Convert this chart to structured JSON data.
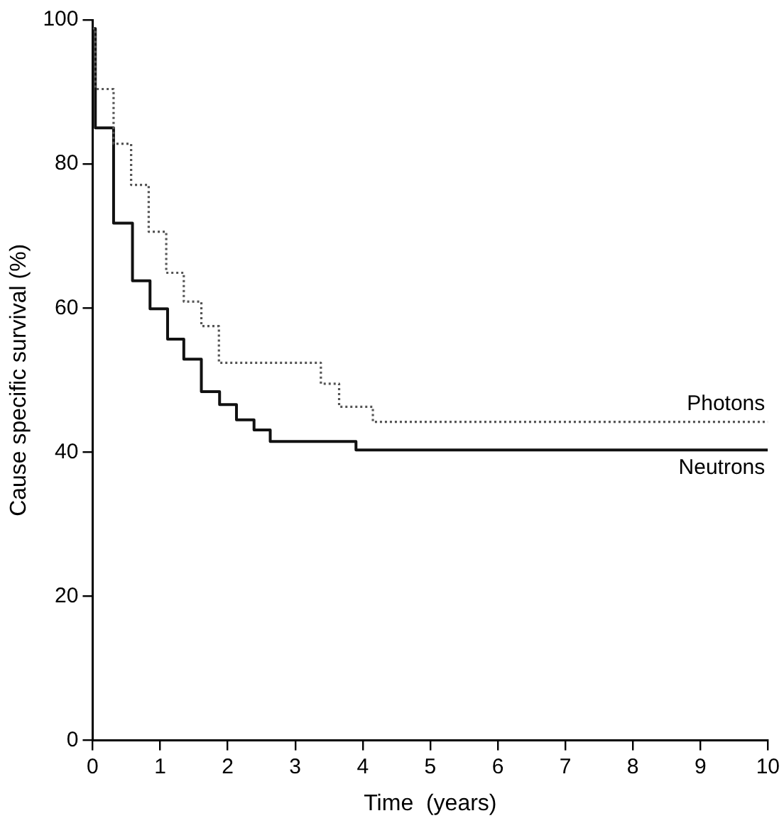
{
  "chart_data": {
    "type": "step",
    "xlabel": "Time  (years)",
    "ylabel": "Cause specific survival (%)",
    "xlim": [
      0,
      10
    ],
    "xticks": [
      0,
      1,
      2,
      3,
      4,
      5,
      6,
      7,
      8,
      9,
      10
    ],
    "ylim": [
      0,
      100
    ],
    "yticks": [
      0,
      20,
      40,
      60,
      80,
      100
    ],
    "grid": false,
    "legend": false,
    "marker": "none",
    "series": [
      {
        "name": "Photons",
        "color": "#555555",
        "line_style": "dotted",
        "x": [
          0,
          0.04,
          0.31,
          0.57,
          0.83,
          1.09,
          1.35,
          1.61,
          1.87,
          3.38,
          3.65,
          4.15,
          10
        ],
        "values": [
          98.8,
          90.4,
          82.8,
          77.1,
          70.6,
          64.9,
          60.9,
          57.5,
          52.4,
          49.5,
          46.3,
          44.2,
          44.2
        ]
      },
      {
        "name": "Neutrons",
        "color": "#111111",
        "line_style": "solid",
        "x": [
          0,
          0.04,
          0.31,
          0.59,
          0.85,
          1.11,
          1.35,
          1.61,
          1.88,
          2.13,
          2.39,
          2.63,
          3.9,
          10
        ],
        "values": [
          98.8,
          85,
          71.8,
          63.8,
          59.9,
          55.7,
          52.9,
          48.4,
          46.6,
          44.5,
          43.1,
          41.5,
          40.3,
          40.3
        ]
      }
    ]
  }
}
